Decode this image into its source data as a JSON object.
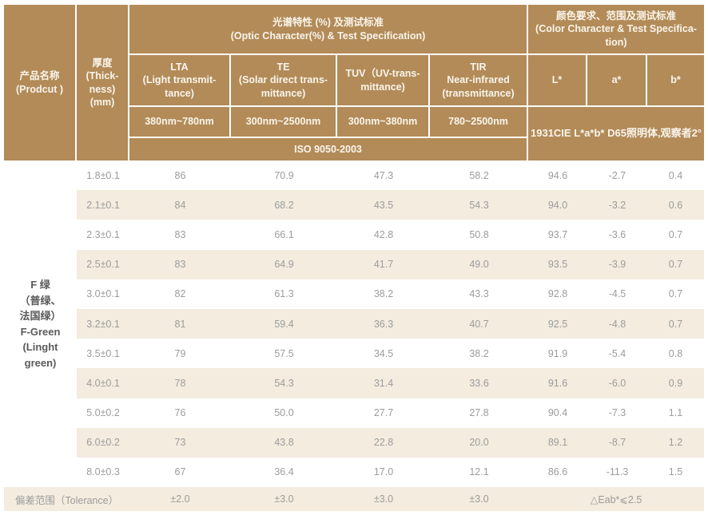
{
  "colors": {
    "header_bg": "#b28b58",
    "header_text": "#faf5ec",
    "alt_row_bg": "#f3ecdf",
    "body_text": "#9c9c9c",
    "product_text": "#5a5a5a",
    "page_bg": "#ffffff"
  },
  "table": {
    "product_header": "产品名称\n(Prodcut )",
    "thickness_header": "厚度\n(Thick-\nness)\n(mm)",
    "optic_group_header": "光谱特性 (%) 及测试标准\n(Optic Character(%) & Test Specification)",
    "color_group_header": "颜色要求、范围及测试标准\n(Color Character & Test Specifica-\ntion)",
    "columns": {
      "lta": "LTA\n(Light transmit-\ntance)",
      "te": "TE\n(Solar direct trans-\nmittance)",
      "tuv": "TUV（UV-trans-\nmittance)",
      "tir": "TIR\nNear-infrared\n(transmittance)",
      "l": "L*",
      "a": "a*",
      "b": "b*"
    },
    "ranges": {
      "lta": "380nm~780nm",
      "te": "300nm~2500nm",
      "tuv": "300nm~380nm",
      "tir": "780~2500nm"
    },
    "optic_standard": "ISO 9050-2003",
    "color_standard": "1931CIE L*a*b*  D65照明体,观察者2°",
    "product_name": "F 绿\n（普绿、\n法国绿）\nF-Green\n(Linght\ngreen)",
    "rows": [
      {
        "thickness": "1.8±0.1",
        "lta": "86",
        "te": "70.9",
        "tuv": "47.3",
        "tir": "58.2",
        "l": "94.6",
        "a": "-2.7",
        "b": "0.4"
      },
      {
        "thickness": "2.1±0.1",
        "lta": "84",
        "te": "68.2",
        "tuv": "43.5",
        "tir": "54.3",
        "l": "94.0",
        "a": "-3.2",
        "b": "0.6"
      },
      {
        "thickness": "2.3±0.1",
        "lta": "83",
        "te": "66.1",
        "tuv": "42.8",
        "tir": "50.8",
        "l": "93.7",
        "a": "-3.6",
        "b": "0.7"
      },
      {
        "thickness": "2.5±0.1",
        "lta": "83",
        "te": "64.9",
        "tuv": "41.7",
        "tir": "49.0",
        "l": "93.5",
        "a": "-3.9",
        "b": "0.7"
      },
      {
        "thickness": "3.0±0.1",
        "lta": "82",
        "te": "61.3",
        "tuv": "38.2",
        "tir": "43.3",
        "l": "92.8",
        "a": "-4.5",
        "b": "0.7"
      },
      {
        "thickness": "3.2±0.1",
        "lta": "81",
        "te": "59.4",
        "tuv": "36.3",
        "tir": "40.7",
        "l": "92.5",
        "a": "-4.8",
        "b": "0.7"
      },
      {
        "thickness": "3.5±0.1",
        "lta": "79",
        "te": "57.5",
        "tuv": "34.5",
        "tir": "38.2",
        "l": "91.9",
        "a": "-5.4",
        "b": "0.8"
      },
      {
        "thickness": "4.0±0.1",
        "lta": "78",
        "te": "54.3",
        "tuv": "31.4",
        "tir": "33.6",
        "l": "91.6",
        "a": "-6.0",
        "b": "0.9"
      },
      {
        "thickness": "5.0±0.2",
        "lta": "76",
        "te": "50.0",
        "tuv": "27.7",
        "tir": "27.8",
        "l": "90.4",
        "a": "-7.3",
        "b": "1.1"
      },
      {
        "thickness": "6.0±0.2",
        "lta": "73",
        "te": "43.8",
        "tuv": "22.8",
        "tir": "20.0",
        "l": "89.1",
        "a": "-8.7",
        "b": "1.2"
      },
      {
        "thickness": "8.0±0.3",
        "lta": "67",
        "te": "36.4",
        "tuv": "17.0",
        "tir": "12.1",
        "l": "86.6",
        "a": "-11.3",
        "b": "1.5"
      }
    ],
    "tolerance": {
      "label": "偏差范围（Tolerance）",
      "lta": "±2.0",
      "te": "±3.0",
      "tuv": "±3.0",
      "tir": "±3.0",
      "color": "△Eab*⩽2.5"
    }
  }
}
